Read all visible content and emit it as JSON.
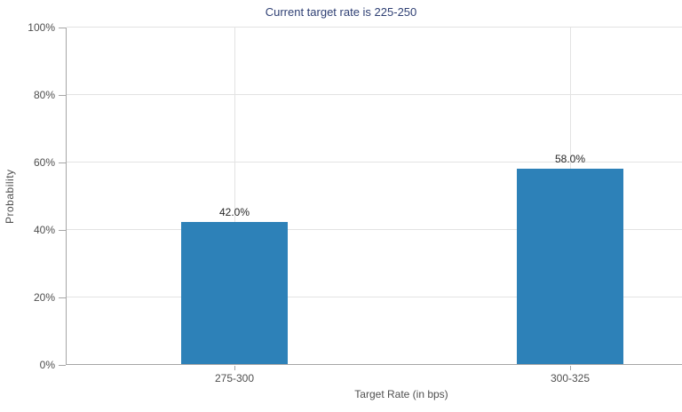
{
  "colors": {
    "bar": "#2d81b8",
    "title_text": "#2e3f73",
    "axis_line": "#a6a6a6",
    "grid_line": "#e3e3e3",
    "tick_text": "#4f4f4f",
    "value_text": "#262626"
  },
  "chart_data": {
    "type": "bar",
    "title": "Current target rate is 225-250",
    "xlabel": "Target Rate (in bps)",
    "ylabel": "Probability",
    "categories": [
      "275-300",
      "300-325"
    ],
    "values": [
      42.0,
      58.0
    ],
    "value_labels": [
      "42.0%",
      "58.0%"
    ],
    "ylim": [
      0,
      100
    ],
    "yticks": [
      0,
      20,
      40,
      60,
      80,
      100
    ],
    "ytick_labels": [
      "0%",
      "20%",
      "40%",
      "60%",
      "80%",
      "100%"
    ],
    "grid": true,
    "legend": "none"
  }
}
